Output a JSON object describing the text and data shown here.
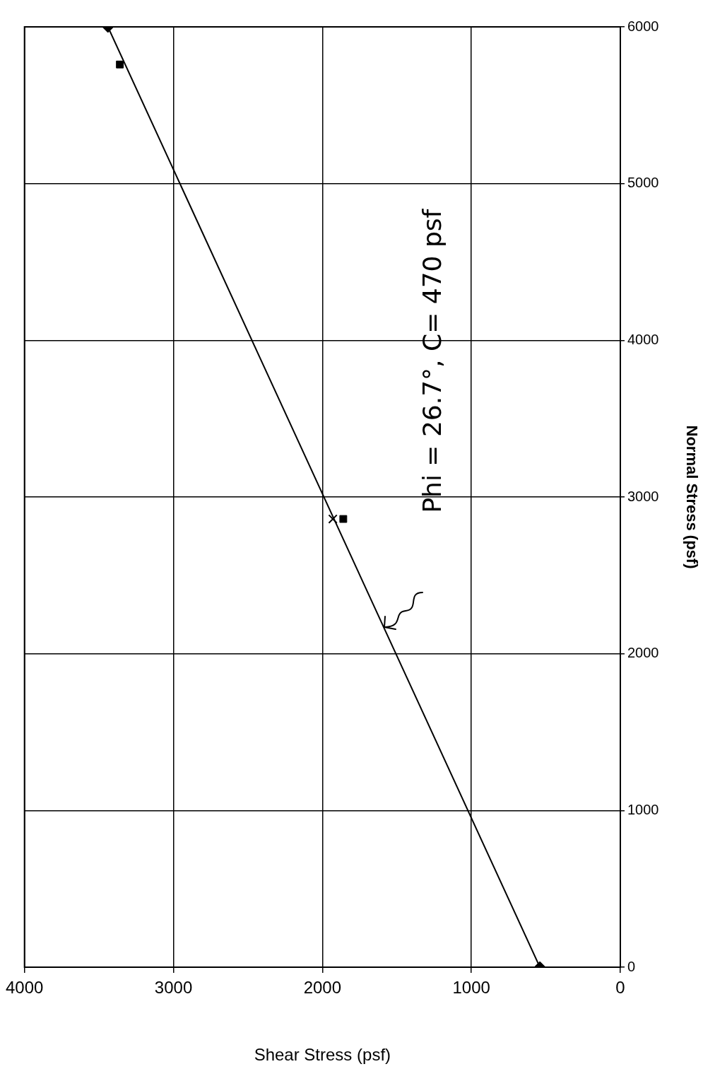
{
  "chart_data": {
    "type": "scatter",
    "xlabel": "Shear Stress (psf)",
    "ylabel": "Normal Stress (psf)",
    "xlim": [
      4000,
      0
    ],
    "xticks": [
      4000,
      3000,
      2000,
      1000,
      0
    ],
    "ylim": [
      0,
      6000
    ],
    "yticks": [
      0,
      1000,
      2000,
      3000,
      4000,
      5000,
      6000
    ],
    "grid": true,
    "legend": false,
    "series": [
      {
        "type": "line",
        "color": "#000000",
        "marker": "diamond",
        "x": [
          540,
          3440
        ],
        "values": [
          0,
          6000
        ]
      },
      {
        "color": "#000000",
        "marker": "square",
        "x": [
          1860,
          3360
        ],
        "values": [
          2860,
          5760
        ]
      },
      {
        "color": "#000000",
        "marker": "cross",
        "x": [
          1930
        ],
        "values": [
          2860
        ]
      }
    ],
    "annotations": [
      "Phi = 26.7°, C= 470 psf"
    ]
  }
}
